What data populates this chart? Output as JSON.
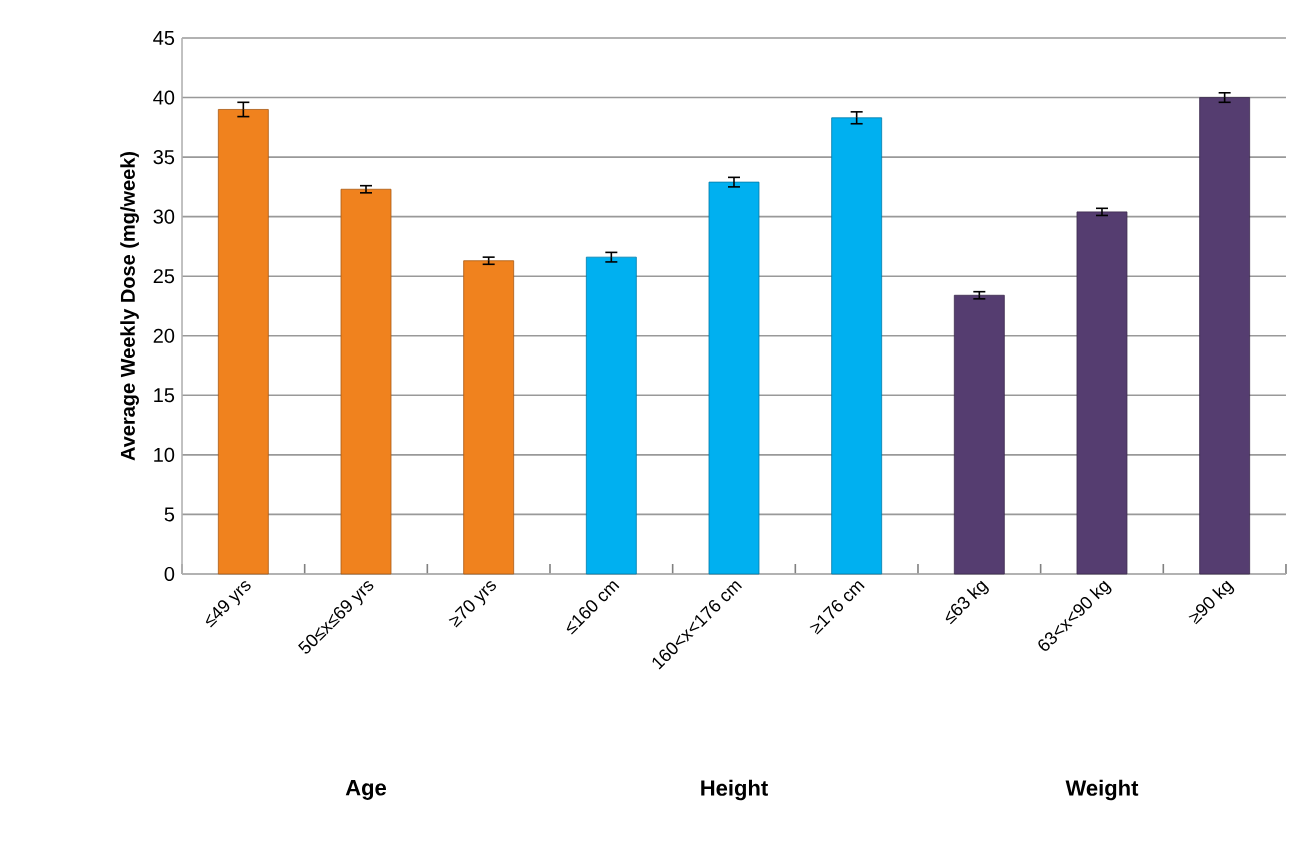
{
  "chart_data": {
    "type": "bar",
    "ylabel": "Average Weekly Dose (mg/week)",
    "categories": [
      "≤49 yrs",
      "50≤x≤69 yrs",
      "≥70 yrs",
      "≤160 cm",
      "160<x<176 cm",
      "≥176 cm",
      "≤63 kg",
      "63<x<90 kg",
      "≥90 kg"
    ],
    "series": [
      {
        "color": "#f0821e",
        "values": [
          39.0,
          32.3,
          26.3,
          null,
          null,
          null,
          null,
          null,
          null
        ],
        "errors": [
          0.6,
          0.3,
          0.3,
          null,
          null,
          null,
          null,
          null,
          null
        ]
      },
      {
        "color": "#00b0f0",
        "values": [
          null,
          null,
          null,
          26.6,
          32.9,
          38.3,
          null,
          null,
          null
        ],
        "errors": [
          null,
          null,
          null,
          0.4,
          0.4,
          0.5,
          null,
          null,
          null
        ]
      },
      {
        "color": "#553d70",
        "values": [
          null,
          null,
          null,
          null,
          null,
          null,
          23.4,
          30.4,
          40.0
        ],
        "errors": [
          null,
          null,
          null,
          null,
          null,
          null,
          0.3,
          0.3,
          0.4
        ]
      }
    ],
    "ylim": [
      0,
      45
    ],
    "yticks": [
      0,
      5,
      10,
      15,
      20,
      25,
      30,
      35,
      40,
      45
    ],
    "annotations": [
      "Age",
      "Height",
      "Weight"
    ],
    "grid": "y",
    "legend": false
  }
}
